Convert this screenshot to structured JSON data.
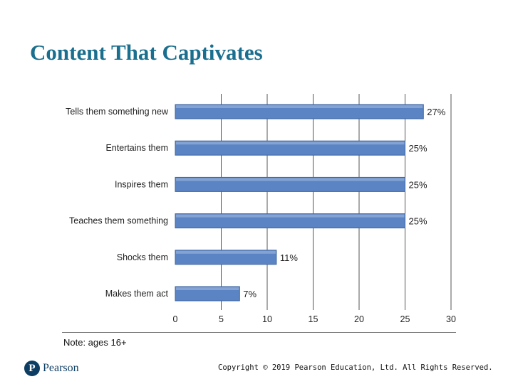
{
  "slide": {
    "title": "Content That Captivates",
    "note": "Note: ages 16+",
    "brand": "Pearson",
    "brand_mark": "P",
    "copyright": "Copyright © 2019 Pearson Education, Ltd. All Rights Reserved."
  },
  "colors": {
    "title": "#1b6f8e",
    "bar_fill": "#5b84c4",
    "bar_edge": "#3d659f",
    "gridline": "#555555"
  },
  "chart_data": {
    "type": "bar",
    "orientation": "horizontal",
    "categories": [
      "Tells them something new",
      "Entertains them",
      "Inspires them",
      "Teaches them something",
      "Shocks them",
      "Makes them act"
    ],
    "values": [
      27,
      25,
      25,
      25,
      11,
      7
    ],
    "data_labels": [
      "27%",
      "25%",
      "25%",
      "25%",
      "11%",
      "7%"
    ],
    "xlim": [
      0,
      30
    ],
    "xticks": [
      0,
      5,
      10,
      15,
      20,
      25,
      30
    ],
    "grid": true
  }
}
